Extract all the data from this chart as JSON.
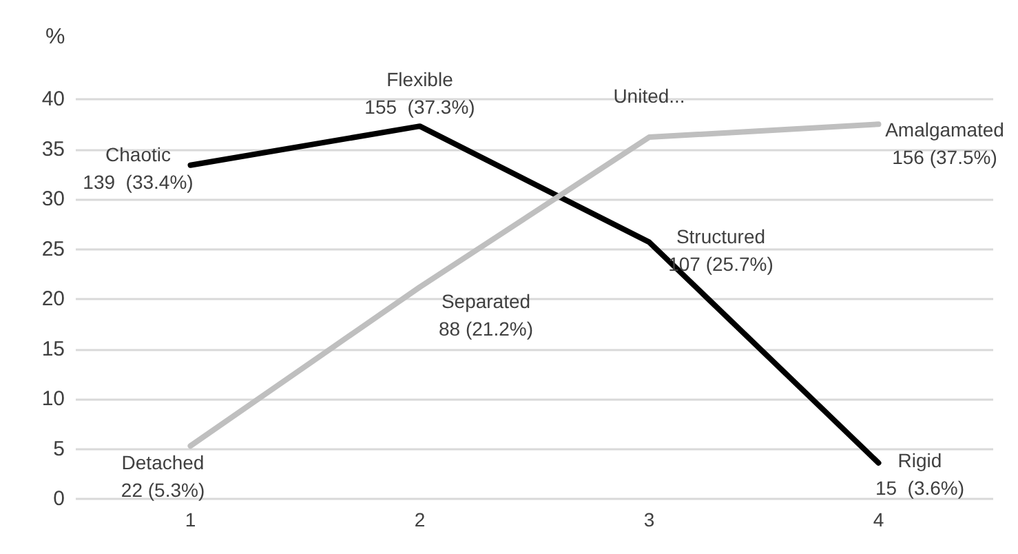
{
  "chart_data": {
    "type": "line",
    "ylabel": "%",
    "categories": [
      "1",
      "2",
      "3",
      "4"
    ],
    "series": [
      {
        "color": "#000000",
        "values": [
          33.4,
          37.3,
          25.7,
          3.6
        ],
        "value_labels": [
          "Chaotic\n139  (33.4%)",
          "Flexible\n155  (37.3%)",
          "Structured\n107 (25.7%)",
          "Rigid\n15  (3.6%)"
        ]
      },
      {
        "color": "#bfbfbf",
        "values": [
          5.3,
          21.2,
          36.2,
          37.5
        ],
        "value_labels": [
          "Detached\n22 (5.3%)",
          "Separated\n88 (21.2%)",
          "United...",
          "Amalgamated\n156 (37.5%)"
        ]
      }
    ],
    "ylim": [
      0,
      40
    ],
    "yticks": [
      0,
      5,
      10,
      15,
      20,
      25,
      30,
      35,
      40
    ],
    "grid": "y",
    "marker": "none",
    "line_style": "solid"
  }
}
